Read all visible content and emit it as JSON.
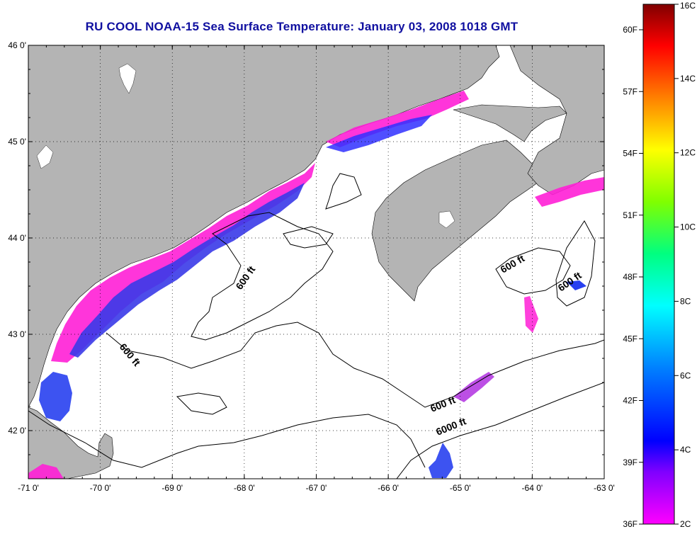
{
  "title": "RU COOL  NOAA-15  Sea Surface Temperature:  January 03, 2008 1018 GMT",
  "map": {
    "lon_range": [
      -71,
      -63
    ],
    "lat_range": [
      41.5,
      46
    ],
    "lon_ticks": [
      "-71 0'",
      "-70 0'",
      "-69 0'",
      "-68 0'",
      "-67 0'",
      "-66 0'",
      "-65 0'",
      "-64 0'",
      "-63 0'"
    ],
    "lat_ticks": [
      "46 0'",
      "45 0'",
      "44 0'",
      "43 0'",
      "42 0'"
    ],
    "grid": "dotted",
    "land_color": "#b4b4b4",
    "water_color": "#ffffff"
  },
  "contour_labels": [
    "600 ft",
    "600 ft",
    "600 ft",
    "600 ft",
    "600 ft",
    "6000 ft"
  ],
  "colorbar": {
    "fahrenheit_labels": [
      "60F",
      "57F",
      "54F",
      "51F",
      "48F",
      "45F",
      "42F",
      "39F",
      "36F"
    ],
    "celsius_labels": [
      "16C",
      "14C",
      "12C",
      "10C",
      "8C",
      "6C",
      "4C",
      "2C"
    ],
    "colors": [
      "#ff00ff",
      "#8000ff",
      "#0000ff",
      "#0080ff",
      "#00ffff",
      "#00ff80",
      "#80ff00",
      "#ffff00",
      "#ff8000",
      "#ff0000",
      "#800000"
    ]
  }
}
